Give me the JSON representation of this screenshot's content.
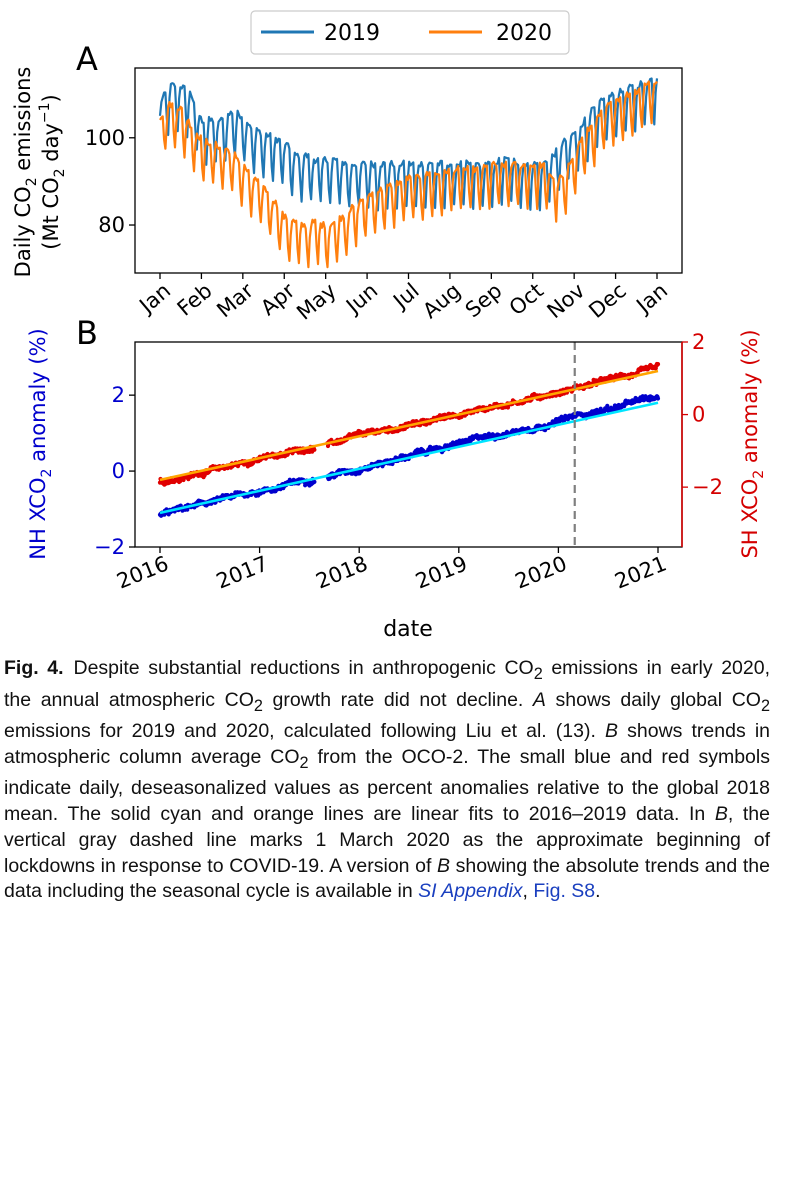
{
  "chart_data": [
    {
      "panel_label": "A",
      "type": "line",
      "title": "",
      "xlabel": "",
      "ylabel": "Daily CO2 emissions (Mt CO2 day−1)",
      "ylabel_parts": [
        "Daily CO",
        "2",
        " emissions",
        "(Mt CO",
        "2",
        " day",
        "−1",
        ")"
      ],
      "xlim": [
        0,
        12.5
      ],
      "ylim": [
        69,
        116
      ],
      "yticks": [
        80,
        100
      ],
      "x_tick_positions": [
        0,
        1,
        2,
        3,
        4,
        5,
        6,
        7,
        8,
        9,
        10,
        11,
        12
      ],
      "categories": [
        "Jan",
        "Feb",
        "Mar",
        "Apr",
        "May",
        "Jun",
        "Jul",
        "Aug",
        "Sep",
        "Oct",
        "Nov",
        "Dec",
        "Jan"
      ],
      "legend": {
        "position": "top-center",
        "entries": [
          "2019",
          "2020"
        ]
      },
      "colors": {
        "2019": "#1f77b4",
        "2020": "#ff7f0e"
      },
      "weekly_amplitude": {
        "2019": 8,
        "2020": 7.5
      },
      "series": [
        {
          "name": "2019",
          "x": [
            0,
            0.25,
            0.5,
            0.75,
            1,
            1.25,
            1.5,
            1.75,
            2,
            2.25,
            2.5,
            2.75,
            3,
            3.25,
            3.5,
            3.75,
            4,
            4.25,
            4.5,
            4.75,
            5,
            5.25,
            5.5,
            5.75,
            6,
            6.25,
            6.5,
            6.75,
            7,
            7.25,
            7.5,
            7.75,
            8,
            8.25,
            8.5,
            8.75,
            9,
            9.25,
            9.5,
            9.75,
            10,
            10.25,
            10.5,
            10.75,
            11,
            11.25,
            11.5,
            11.75,
            12
          ],
          "values": [
            104,
            108,
            108,
            106,
            100,
            100,
            100,
            102,
            101,
            98,
            97,
            96,
            95,
            92,
            92,
            91,
            91,
            91,
            90,
            90,
            90,
            90,
            90,
            90,
            90,
            90,
            90,
            90,
            90,
            90,
            90,
            90,
            90,
            91,
            91,
            90,
            90,
            90,
            92,
            95,
            97,
            100,
            103,
            105,
            106,
            107,
            108,
            109,
            110
          ]
        },
        {
          "name": "2020",
          "x": [
            0,
            0.25,
            0.5,
            0.75,
            1,
            1.25,
            1.5,
            1.75,
            2,
            2.25,
            2.5,
            2.75,
            3,
            3.25,
            3.5,
            3.75,
            4,
            4.25,
            4.5,
            4.75,
            5,
            5.25,
            5.5,
            5.75,
            6,
            6.25,
            6.5,
            6.75,
            7,
            7.25,
            7.5,
            7.75,
            8,
            8.25,
            8.5,
            8.75,
            9,
            9.25,
            9.5,
            9.75,
            10,
            10.25,
            10.5,
            10.75,
            11,
            11.25,
            11.5,
            11.75,
            12
          ],
          "values": [
            101,
            104,
            103,
            99,
            96,
            95,
            94,
            93,
            90,
            87,
            85,
            82,
            78,
            77,
            76,
            77,
            76,
            77,
            79,
            81,
            83,
            84,
            85,
            86,
            87,
            87,
            88,
            88,
            89,
            89,
            89,
            89,
            90,
            90,
            90,
            90,
            90,
            90,
            87,
            87,
            93,
            97,
            100,
            103,
            105,
            106,
            107,
            109,
            109
          ]
        }
      ]
    },
    {
      "panel_label": "B",
      "type": "scatter",
      "title": "",
      "xlabel": "date",
      "ylabel": "NH XCO2 anomaly (%)",
      "ylabel_parts": [
        "NH XCO",
        "2",
        " anomaly (%)"
      ],
      "ylabel_right": "SH XCO2 anomaly (%)",
      "ylabel_right_parts": [
        "SH XCO",
        "2",
        " anomaly (%)"
      ],
      "xlim": [
        2015.75,
        2021.25
      ],
      "ylim": [
        -2,
        3.4
      ],
      "yticks": [
        -2,
        0,
        2
      ],
      "ylim_right": [
        -3.65,
        2
      ],
      "yticks_right": [
        -2,
        0,
        2
      ],
      "xticks": [
        2016,
        2017,
        2018,
        2019,
        2020,
        2021
      ],
      "categories": [
        "2016",
        "2017",
        "2018",
        "2019",
        "2020",
        "2021"
      ],
      "vline": {
        "x": 2020.164,
        "label": "1 March 2020",
        "style": "dashed",
        "color": "#7f7f7f"
      },
      "colors": {
        "NH": "#0000cd",
        "SH": "#e00000",
        "NH_fit": "#00e5ff",
        "SH_fit": "#ffa500",
        "right_axis": "#d40000",
        "left_axis_label": "#0000cd"
      },
      "series": [
        {
          "name": "NH daily deseasonalized",
          "axis": "left",
          "x_range": [
            2016.0,
            2021.0
          ],
          "trend_start": -1.15,
          "trend_end": 1.95
        },
        {
          "name": "SH daily deseasonalized",
          "axis": "right",
          "x_range": [
            2016.0,
            2021.0
          ],
          "trend_start": -1.85,
          "trend_end": 1.25
        },
        {
          "name": "NH linear fit 2016-2019",
          "axis": "left",
          "x": [
            2016.0,
            2021.0
          ],
          "values": [
            -1.1,
            1.8
          ]
        },
        {
          "name": "SH linear fit 2016-2019",
          "axis": "right",
          "x": [
            2016.0,
            2021.0
          ],
          "values": [
            -1.8,
            1.2
          ]
        }
      ]
    }
  ],
  "caption": {
    "fig_number": "Fig. 4.",
    "s1": "Despite substantial reductions in anthropogenic CO",
    "s1_sub": "2",
    "s2": " emissions in early 2020, the annual atmospheric CO",
    "s2_sub": "2",
    "s3": " growth rate did not decline. ",
    "s3_it": "A",
    "s4": " shows daily global CO",
    "s4_sub": "2",
    "s5": " emissions for 2019 and 2020, calculated following Liu et al. (13). ",
    "s5_it": "B",
    "s6": " shows trends in atmospheric column average CO",
    "s6_sub": "2",
    "s7": " from the OCO-2. The small blue and red symbols indicate daily, deseasonalized values as percent anomalies relative to the global 2018 mean. The solid cyan and orange lines are linear fits to 2016–2019 data. In ",
    "s7_it": "B",
    "s8": ", the vertical gray dashed line marks 1 March 2020 as the approximate beginning of lockdowns in response to COVID-19. A version of ",
    "s8_it": "B",
    "s9": " showing the absolute trends and the data including the seasonal cycle is available in ",
    "s9_link": "SI Appendix",
    "s10": ", ",
    "s10_link": "Fig. S8",
    "s11": "."
  }
}
